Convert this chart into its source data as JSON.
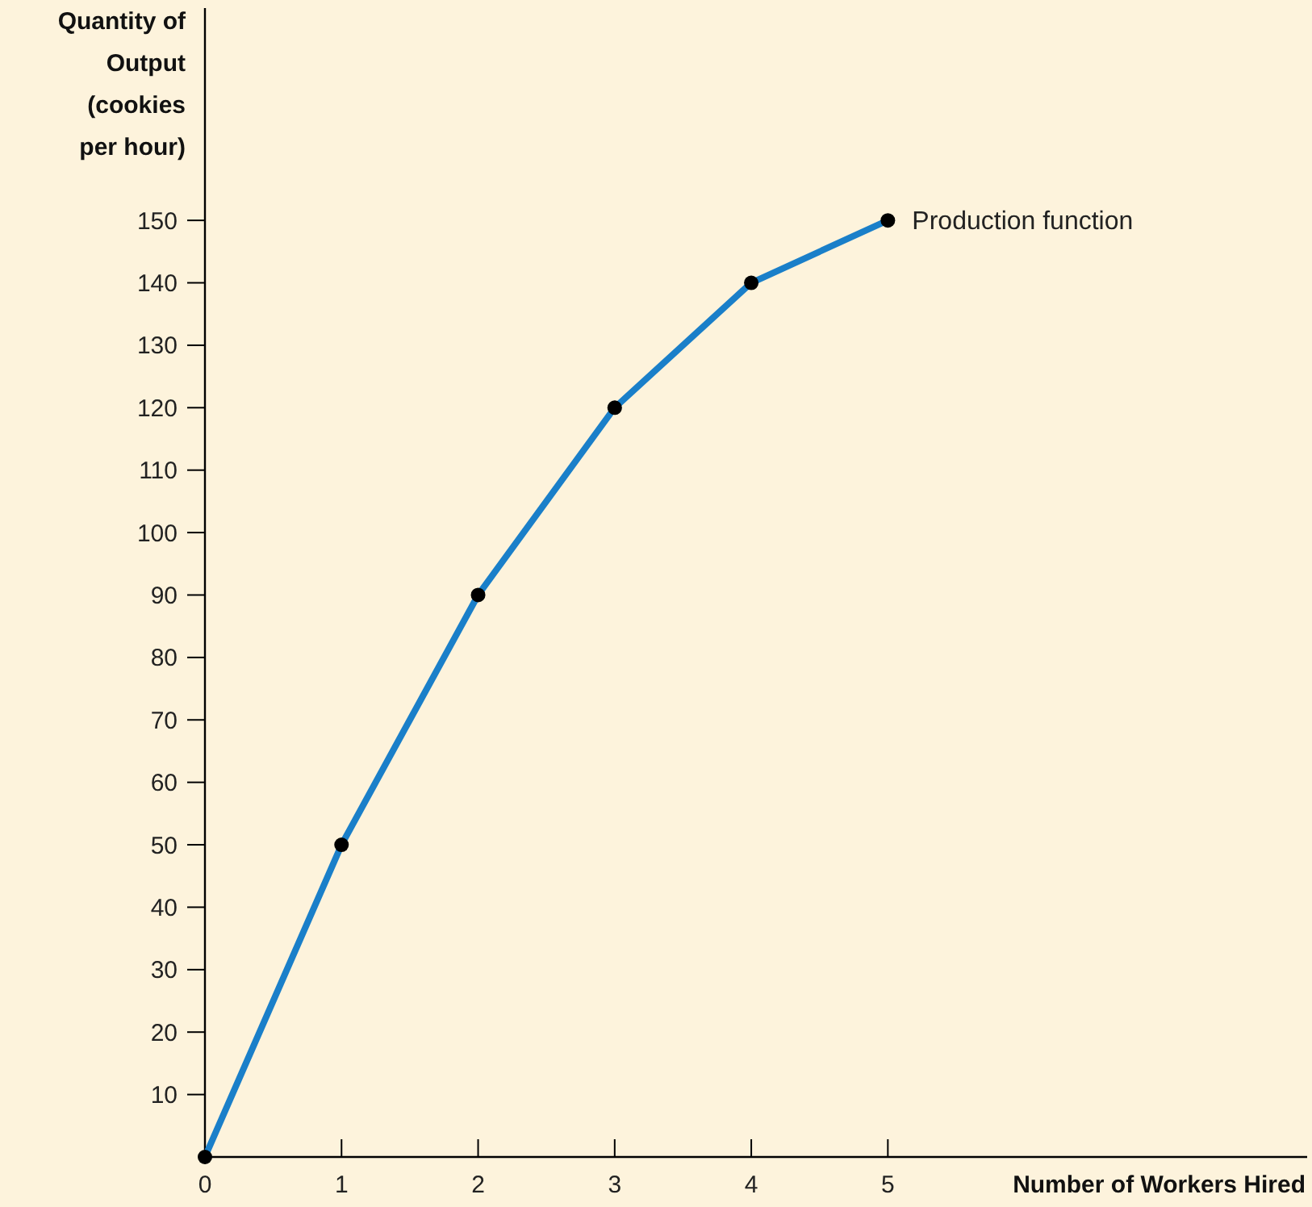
{
  "chart_data": {
    "type": "line",
    "xlabel": "Number of Workers Hired",
    "ylabel": "Quantity of Output (cookies per hour)",
    "x": [
      0,
      1,
      2,
      3,
      4,
      5
    ],
    "series": [
      {
        "color": "#1a7fc9",
        "values": [
          0,
          50,
          90,
          120,
          140,
          150
        ]
      }
    ],
    "xlim": [
      0,
      8.07
    ],
    "xticks": [
      0,
      1,
      2,
      3,
      4,
      5
    ],
    "ylim": [
      0,
      184
    ],
    "yticks": [
      10,
      20,
      30,
      40,
      50,
      60,
      70,
      80,
      90,
      100,
      110,
      120,
      130,
      140,
      150
    ],
    "marker": "circle",
    "line_style": "solid",
    "grid": false,
    "annotations": [
      {
        "text": "Production function",
        "x": 5,
        "y": 150
      }
    ]
  }
}
